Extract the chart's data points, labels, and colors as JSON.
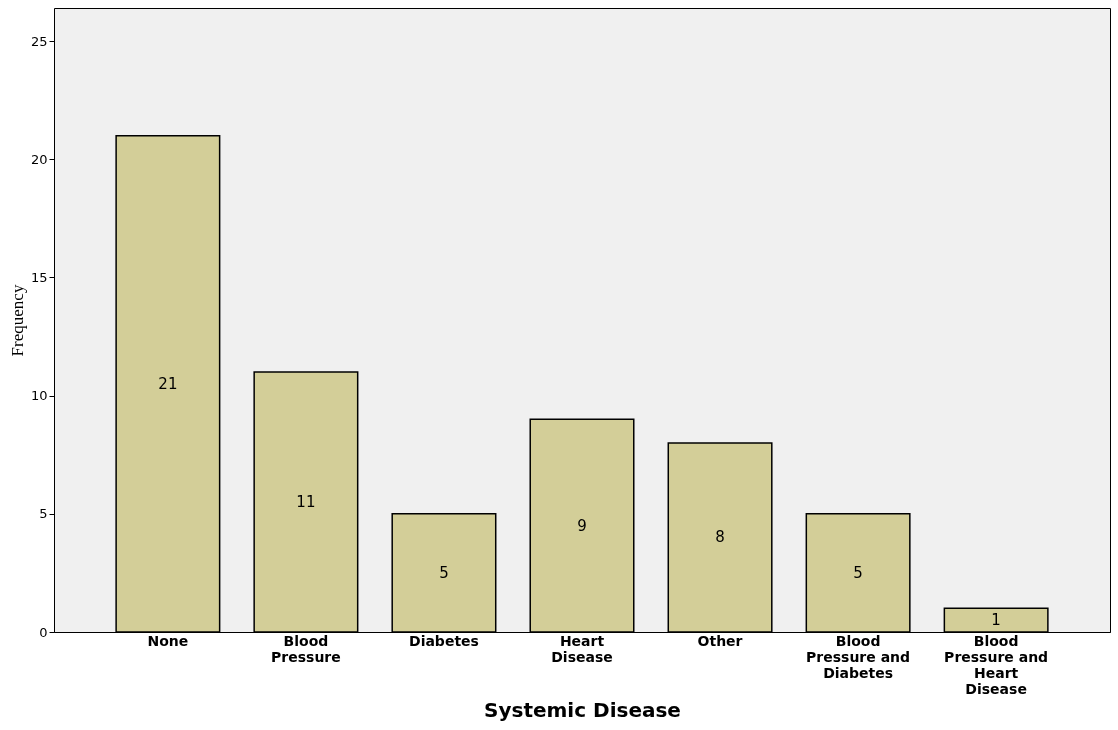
{
  "chart_data": {
    "type": "bar",
    "xlabel": "Systemic Disease",
    "ylabel": "Frequency",
    "categories": [
      "None",
      "Blood Pressure",
      "Diabetes",
      "Heart Disease",
      "Other",
      "Blood Pressure and Diabetes",
      "Blood Pressure and Heart Disease"
    ],
    "values": [
      21,
      11,
      5,
      9,
      8,
      5,
      1
    ],
    "color": "#d3ce98",
    "ylim": [
      0,
      26.4
    ],
    "yticks": [
      0,
      5,
      10,
      15,
      20,
      25
    ],
    "grid": false,
    "data_labels": true
  }
}
